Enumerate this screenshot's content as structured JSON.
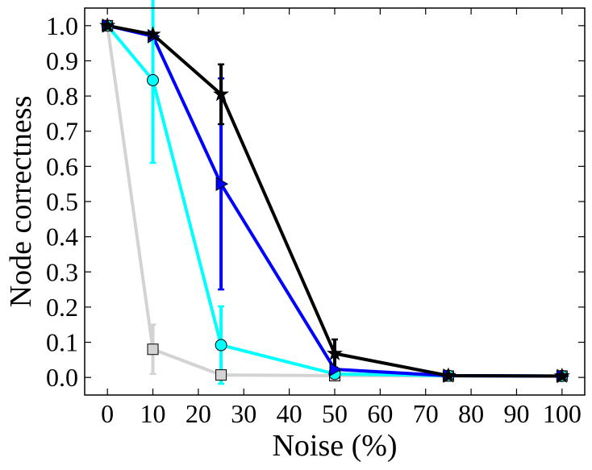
{
  "chart_data": {
    "type": "line",
    "title": "",
    "xlabel": "Noise (%)",
    "ylabel": "Node correctness",
    "xlim": [
      -5,
      105
    ],
    "ylim": [
      -0.05,
      1.05
    ],
    "xticks": [
      0,
      10,
      20,
      30,
      40,
      50,
      60,
      70,
      80,
      90,
      100
    ],
    "xtick_labels": [
      "0",
      "10",
      "20",
      "30",
      "40",
      "50",
      "60",
      "70",
      "80",
      "90",
      "100"
    ],
    "yticks": [
      0.0,
      0.1,
      0.2,
      0.3,
      0.4,
      0.5,
      0.6,
      0.7,
      0.8,
      0.9,
      1.0
    ],
    "ytick_labels": [
      "0.0",
      "0.1",
      "0.2",
      "0.3",
      "0.4",
      "0.5",
      "0.6",
      "0.7",
      "0.8",
      "0.9",
      "1.0"
    ],
    "grid": false,
    "legend": "none",
    "x": [
      0,
      10,
      25,
      50,
      75,
      100
    ],
    "series": [
      {
        "color": "#d3d3d3",
        "marker": "square",
        "values": [
          1.0,
          0.08,
          0.007,
          0.005,
          0.004,
          0.004
        ],
        "errors": [
          0.0,
          0.07,
          0.005,
          0.0,
          0.0,
          0.0
        ]
      },
      {
        "color": "#00ffff",
        "marker": "circle",
        "values": [
          1.0,
          0.845,
          0.092,
          0.01,
          0.005,
          0.004
        ],
        "errors": [
          0.0,
          0.235,
          0.11,
          0.0,
          0.0,
          0.0
        ]
      },
      {
        "color": "#0000ff",
        "marker": "triangle-right",
        "values": [
          1.0,
          0.97,
          0.55,
          0.023,
          0.005,
          0.004
        ],
        "errors": [
          0.0,
          0.0,
          0.3,
          0.0,
          0.0,
          0.0
        ]
      },
      {
        "color": "#000000",
        "marker": "star",
        "values": [
          1.0,
          0.975,
          0.805,
          0.068,
          0.005,
          0.004
        ],
        "errors": [
          0.0,
          0.0,
          0.085,
          0.04,
          0.0,
          0.0
        ]
      }
    ]
  }
}
